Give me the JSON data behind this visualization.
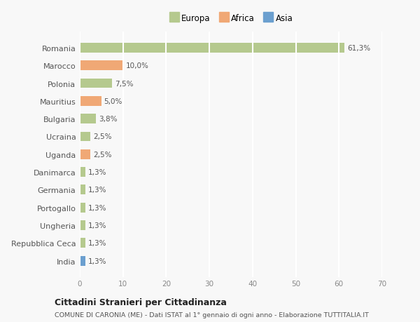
{
  "categories": [
    "Romania",
    "Marocco",
    "Polonia",
    "Mauritius",
    "Bulgaria",
    "Ucraina",
    "Uganda",
    "Danimarca",
    "Germania",
    "Portogallo",
    "Ungheria",
    "Repubblica Ceca",
    "India"
  ],
  "values": [
    61.3,
    10.0,
    7.5,
    5.0,
    3.8,
    2.5,
    2.5,
    1.3,
    1.3,
    1.3,
    1.3,
    1.3,
    1.3
  ],
  "labels": [
    "61,3%",
    "10,0%",
    "7,5%",
    "5,0%",
    "3,8%",
    "2,5%",
    "2,5%",
    "1,3%",
    "1,3%",
    "1,3%",
    "1,3%",
    "1,3%",
    "1,3%"
  ],
  "colors": [
    "#b5c98e",
    "#f0a875",
    "#b5c98e",
    "#f0a875",
    "#b5c98e",
    "#b5c98e",
    "#f0a875",
    "#b5c98e",
    "#b5c98e",
    "#b5c98e",
    "#b5c98e",
    "#b5c98e",
    "#6b9fcf"
  ],
  "legend_labels": [
    "Europa",
    "Africa",
    "Asia"
  ],
  "legend_colors": [
    "#b5c98e",
    "#f0a875",
    "#6b9fcf"
  ],
  "xlim": [
    0,
    70
  ],
  "xticks": [
    0,
    10,
    20,
    30,
    40,
    50,
    60,
    70
  ],
  "title": "Cittadini Stranieri per Cittadinanza",
  "subtitle": "COMUNE DI CARONIA (ME) - Dati ISTAT al 1° gennaio di ogni anno - Elaborazione TUTTITALIA.IT",
  "background_color": "#f8f8f8",
  "grid_color": "#ffffff",
  "bar_height": 0.55
}
